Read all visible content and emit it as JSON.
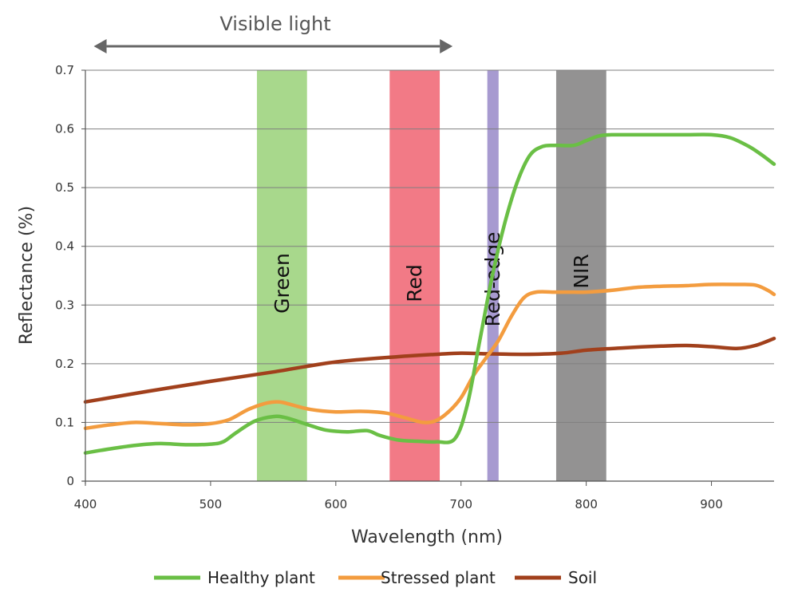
{
  "chart_data": {
    "type": "line",
    "title": "",
    "xlabel": "Wavelength (nm)",
    "ylabel": "Reflectance (%)",
    "xlim": [
      400,
      950
    ],
    "ylim": [
      0,
      0.7
    ],
    "x_ticks": [
      "400",
      "500",
      "600",
      "700",
      "800",
      "900"
    ],
    "y_ticks": [
      "0",
      "0.1",
      "0.2",
      "0.3",
      "0.4",
      "0.5",
      "0.6",
      "0.7"
    ],
    "grid": "horizontal",
    "legend_position": "bottom",
    "top_annotation": {
      "label": "Visible light",
      "x_range": [
        408,
        692
      ]
    },
    "bands": [
      {
        "label": "Green",
        "x_range": [
          537,
          577
        ],
        "color": "#a8d88c"
      },
      {
        "label": "Red",
        "x_range": [
          643,
          683
        ],
        "color": "#f27a86"
      },
      {
        "label": "Red-edge",
        "x_range": [
          721,
          730
        ],
        "color": "#a79ad0"
      },
      {
        "label": "NIR",
        "x_range": [
          776,
          816
        ],
        "color": "#939292"
      }
    ],
    "series": [
      {
        "name": "Healthy plant",
        "color": "#6abf45",
        "x": [
          400,
          420,
          440,
          460,
          480,
          500,
          510,
          520,
          535,
          550,
          560,
          575,
          590,
          600,
          610,
          625,
          635,
          650,
          665,
          680,
          695,
          705,
          715,
          725,
          735,
          745,
          755,
          765,
          775,
          790,
          800,
          810,
          820,
          840,
          860,
          880,
          900,
          915,
          930,
          940,
          950
        ],
        "y": [
          0.048,
          0.055,
          0.061,
          0.064,
          0.062,
          0.063,
          0.067,
          0.082,
          0.102,
          0.11,
          0.108,
          0.098,
          0.088,
          0.085,
          0.084,
          0.086,
          0.078,
          0.07,
          0.068,
          0.067,
          0.072,
          0.13,
          0.24,
          0.35,
          0.44,
          0.51,
          0.555,
          0.57,
          0.572,
          0.572,
          0.58,
          0.588,
          0.59,
          0.59,
          0.59,
          0.59,
          0.59,
          0.585,
          0.57,
          0.556,
          0.54
        ]
      },
      {
        "name": "Stressed plant",
        "color": "#f39c3f",
        "x": [
          400,
          420,
          440,
          460,
          480,
          500,
          515,
          530,
          545,
          555,
          565,
          580,
          600,
          620,
          640,
          655,
          670,
          680,
          690,
          700,
          710,
          720,
          730,
          740,
          750,
          760,
          775,
          790,
          800,
          820,
          840,
          860,
          880,
          900,
          920,
          935,
          945,
          950
        ],
        "y": [
          0.09,
          0.096,
          0.1,
          0.098,
          0.096,
          0.098,
          0.105,
          0.122,
          0.133,
          0.135,
          0.13,
          0.122,
          0.118,
          0.119,
          0.116,
          0.108,
          0.1,
          0.103,
          0.118,
          0.142,
          0.18,
          0.21,
          0.24,
          0.28,
          0.312,
          0.322,
          0.322,
          0.322,
          0.322,
          0.325,
          0.33,
          0.332,
          0.333,
          0.335,
          0.335,
          0.334,
          0.325,
          0.318
        ]
      },
      {
        "name": "Soil",
        "color": "#a1401c",
        "x": [
          400,
          450,
          500,
          550,
          600,
          650,
          680,
          700,
          720,
          750,
          780,
          800,
          830,
          860,
          880,
          900,
          920,
          935,
          950
        ],
        "y": [
          0.135,
          0.153,
          0.17,
          0.186,
          0.203,
          0.212,
          0.216,
          0.218,
          0.217,
          0.216,
          0.218,
          0.223,
          0.227,
          0.23,
          0.231,
          0.229,
          0.226,
          0.231,
          0.243
        ]
      }
    ]
  }
}
